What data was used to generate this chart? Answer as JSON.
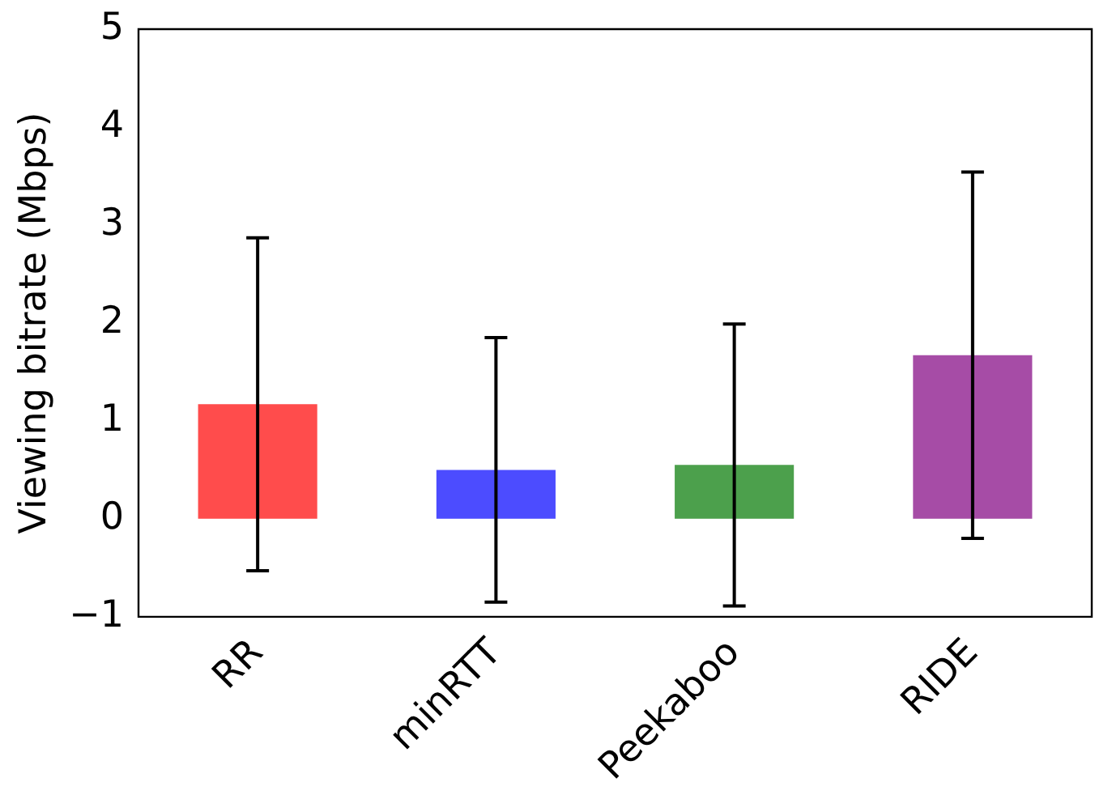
{
  "chart_data": {
    "type": "bar",
    "ylabel": "Viewing bitrate (Mbps)",
    "categories": [
      "RR",
      "minRTT",
      "Peekaboo",
      "RIDE"
    ],
    "values": [
      1.17,
      0.5,
      0.55,
      1.67
    ],
    "errors": [
      1.7,
      1.35,
      1.44,
      1.87
    ],
    "colors": [
      "#ff4c4c",
      "#4c4cff",
      "#4ca04c",
      "#a64ca6"
    ],
    "ylim": [
      -1,
      5
    ],
    "yticks": [
      {
        "value": -1,
        "label": "−1"
      },
      0,
      1,
      2,
      3,
      4,
      5
    ],
    "grid": false,
    "legend": false
  }
}
